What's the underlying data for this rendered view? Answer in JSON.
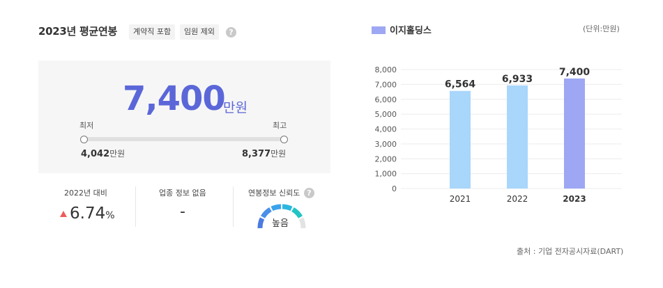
{
  "header": {
    "title": "2023년 평균연봉",
    "tags": [
      "계약직 포함",
      "임원 제외"
    ],
    "help_icon": "question-icon"
  },
  "salary": {
    "value": "7,400",
    "unit": "만원",
    "min_label": "최저",
    "max_label": "최고",
    "min_value": "4,042",
    "max_value": "8,377",
    "range_unit": "만원"
  },
  "stats": {
    "change_label": "2022년 대비",
    "change_value": "6.74",
    "change_unit": "%",
    "change_direction": "up",
    "industry_label": "업종 정보 없음",
    "industry_value": "-",
    "reliability_label": "연봉정보 신뢰도",
    "reliability_value": "높음"
  },
  "legend": {
    "company": "이지홀딩스",
    "unit_note": "(단위:만원)"
  },
  "colors": {
    "accent": "#5b67d8",
    "bar_past": "#a9d6fb",
    "bar_current": "#9da7f3",
    "up": "#ee5b5b"
  },
  "source": "출처 : 기업 전자공시자료(DART)",
  "chart_data": {
    "type": "bar",
    "categories": [
      "2021",
      "2022",
      "2023"
    ],
    "values": [
      6564,
      6933,
      7400
    ],
    "value_labels": [
      "6,564",
      "6,933",
      "7,400"
    ],
    "series": [
      {
        "name": "이지홀딩스",
        "values": [
          6564,
          6933,
          7400
        ]
      }
    ],
    "ylim": [
      0,
      8000
    ],
    "yticks": [
      0,
      1000,
      2000,
      3000,
      4000,
      5000,
      6000,
      7000,
      8000
    ],
    "ytick_labels": [
      "0",
      "1,000",
      "2,000",
      "3,000",
      "4,000",
      "5,000",
      "6,000",
      "7,000",
      "8,000"
    ],
    "grid": true,
    "highlight_category": "2023",
    "legend_position": "top-left"
  }
}
